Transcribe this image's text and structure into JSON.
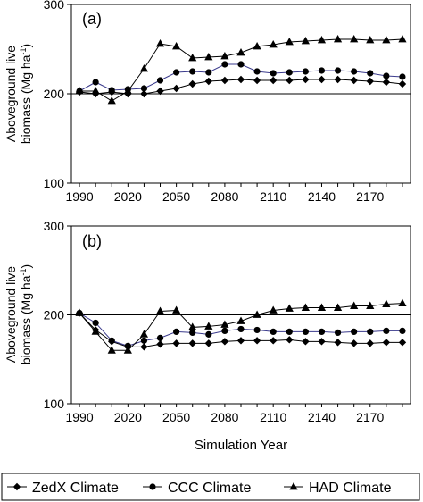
{
  "xlabel": "Simulation Year",
  "legend": [
    {
      "label": "ZedX Climate",
      "marker": "diamond"
    },
    {
      "label": "CCC Climate",
      "marker": "circle"
    },
    {
      "label": "HAD Climate",
      "marker": "triangle"
    }
  ],
  "chart_data": [
    {
      "type": "line",
      "panel_label": "(a)",
      "ylabel_line1": "Aboveground live",
      "ylabel_line2": "biomass (Mg ha",
      "ylabel_sup": "-1",
      "ylabel_close": ")",
      "ylim": [
        100,
        300
      ],
      "yticks": [
        100,
        200,
        300
      ],
      "xlim": [
        1985,
        2195
      ],
      "xticks": [
        1990,
        2020,
        2050,
        2080,
        2110,
        2140,
        2170
      ],
      "reference_line": 200,
      "x": [
        1990,
        2000,
        2010,
        2020,
        2030,
        2040,
        2050,
        2060,
        2070,
        2080,
        2090,
        2100,
        2110,
        2120,
        2130,
        2140,
        2150,
        2160,
        2170,
        2180,
        2190
      ],
      "series": [
        {
          "name": "ZedX Climate",
          "marker": "diamond",
          "values": [
            202,
            200,
            202,
            200,
            200,
            203,
            206,
            211,
            214,
            215,
            216,
            215,
            215,
            215,
            216,
            216,
            216,
            215,
            214,
            213,
            211
          ]
        },
        {
          "name": "CCC Climate",
          "marker": "circle",
          "values": [
            203,
            213,
            204,
            205,
            206,
            215,
            224,
            225,
            224,
            233,
            233,
            225,
            223,
            224,
            225,
            226,
            226,
            225,
            223,
            220,
            219
          ]
        },
        {
          "name": "HAD Climate",
          "marker": "triangle",
          "values": [
            203,
            203,
            192,
            203,
            228,
            256,
            253,
            240,
            241,
            242,
            246,
            253,
            255,
            258,
            259,
            260,
            261,
            261,
            260,
            260,
            261
          ]
        }
      ]
    },
    {
      "type": "line",
      "panel_label": "(b)",
      "ylabel_line1": "Aboveground live",
      "ylabel_line2": "biomass (Mg ha",
      "ylabel_sup": "-1",
      "ylabel_close": ")",
      "ylim": [
        100,
        300
      ],
      "yticks": [
        100,
        200,
        300
      ],
      "xlim": [
        1985,
        2195
      ],
      "xticks": [
        1990,
        2020,
        2050,
        2080,
        2110,
        2140,
        2170
      ],
      "reference_line": 200,
      "x": [
        1990,
        2000,
        2010,
        2020,
        2030,
        2040,
        2050,
        2060,
        2070,
        2080,
        2090,
        2100,
        2110,
        2120,
        2130,
        2140,
        2150,
        2160,
        2170,
        2180,
        2190
      ],
      "series": [
        {
          "name": "ZedX Climate",
          "marker": "diamond",
          "values": [
            202,
            183,
            170,
            164,
            164,
            167,
            168,
            168,
            168,
            170,
            171,
            171,
            171,
            172,
            170,
            170,
            169,
            168,
            168,
            169,
            169
          ]
        },
        {
          "name": "CCC Climate",
          "marker": "circle",
          "values": [
            202,
            191,
            171,
            165,
            171,
            174,
            181,
            180,
            178,
            182,
            184,
            183,
            181,
            181,
            181,
            181,
            180,
            181,
            181,
            182,
            182
          ]
        },
        {
          "name": "HAD Climate",
          "marker": "triangle",
          "values": [
            202,
            181,
            160,
            160,
            178,
            204,
            205,
            186,
            187,
            189,
            193,
            200,
            205,
            207,
            208,
            208,
            208,
            210,
            210,
            212,
            213
          ]
        }
      ]
    }
  ]
}
